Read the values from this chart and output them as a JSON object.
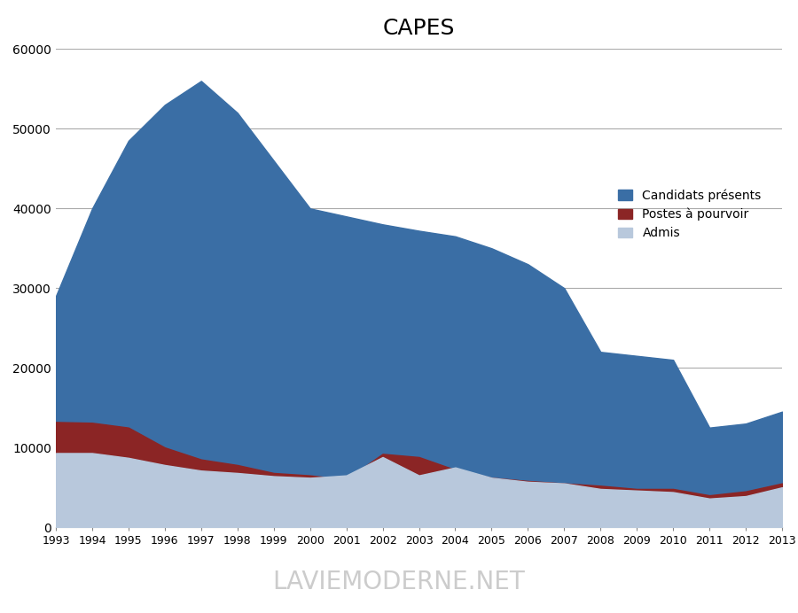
{
  "title": "CAPES",
  "years": [
    1993,
    1994,
    1995,
    1996,
    1997,
    1998,
    1999,
    2000,
    2001,
    2002,
    2003,
    2004,
    2005,
    2006,
    2007,
    2008,
    2009,
    2010,
    2011,
    2012,
    2013
  ],
  "candidats": [
    29000,
    40000,
    48500,
    53000,
    56000,
    52000,
    46000,
    40000,
    39000,
    38000,
    37200,
    36500,
    35000,
    33000,
    30000,
    22000,
    21500,
    21000,
    12500,
    13000,
    14500
  ],
  "postes": [
    13200,
    13100,
    12500,
    10000,
    8500,
    7800,
    6800,
    6500,
    6000,
    9200,
    8800,
    7200,
    6200,
    5800,
    5500,
    5200,
    4800,
    4800,
    4000,
    4500,
    5500
  ],
  "admis": [
    9300,
    9300,
    8700,
    7800,
    7100,
    6800,
    6400,
    6200,
    6500,
    8800,
    6500,
    7500,
    6200,
    5700,
    5500,
    4800,
    4600,
    4400,
    3600,
    3900,
    5000
  ],
  "candidats_color": "#3A6EA5",
  "postes_color": "#8B2525",
  "admis_color": "#B8C8DC",
  "background_color": "#FFFFFF",
  "ylim": [
    0,
    60000
  ],
  "yticks": [
    0,
    10000,
    20000,
    30000,
    40000,
    50000,
    60000
  ],
  "legend_labels": [
    "Candidats présents",
    "Postes à pourvoir",
    "Admis"
  ],
  "watermark": "LAVIEMODERNE.NET",
  "title_fontsize": 18,
  "watermark_fontsize": 20
}
